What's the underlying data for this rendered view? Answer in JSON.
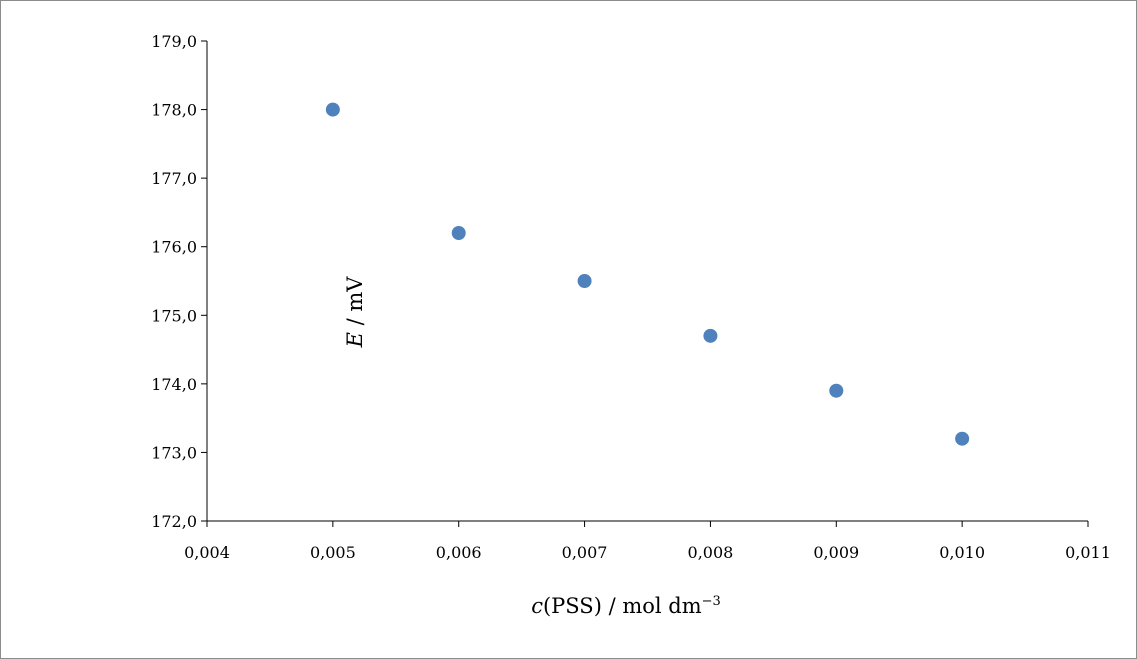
{
  "chart_data": {
    "type": "scatter",
    "x": [
      0.005,
      0.006,
      0.007,
      0.008,
      0.009,
      0.01
    ],
    "y": [
      178.0,
      176.2,
      175.5,
      174.7,
      173.9,
      173.2
    ],
    "xlim": [
      0.004,
      0.011
    ],
    "ylim": [
      172.0,
      179.0
    ],
    "x_ticks": [
      "0,004",
      "0,005",
      "0,006",
      "0,007",
      "0,008",
      "0,009",
      "0,010",
      "0,011"
    ],
    "y_ticks": [
      "172,0",
      "173,0",
      "174,0",
      "175,0",
      "176,0",
      "177,0",
      "178,0",
      "179,0"
    ],
    "xlabel": {
      "var": "c",
      "rest": "(PSS) / mol dm",
      "sup": "−3"
    },
    "ylabel": {
      "var": "E",
      "rest": " / mV"
    },
    "grid": false,
    "legend": "none",
    "marker_color": "#4f81bd",
    "axis_color": "#000000"
  }
}
